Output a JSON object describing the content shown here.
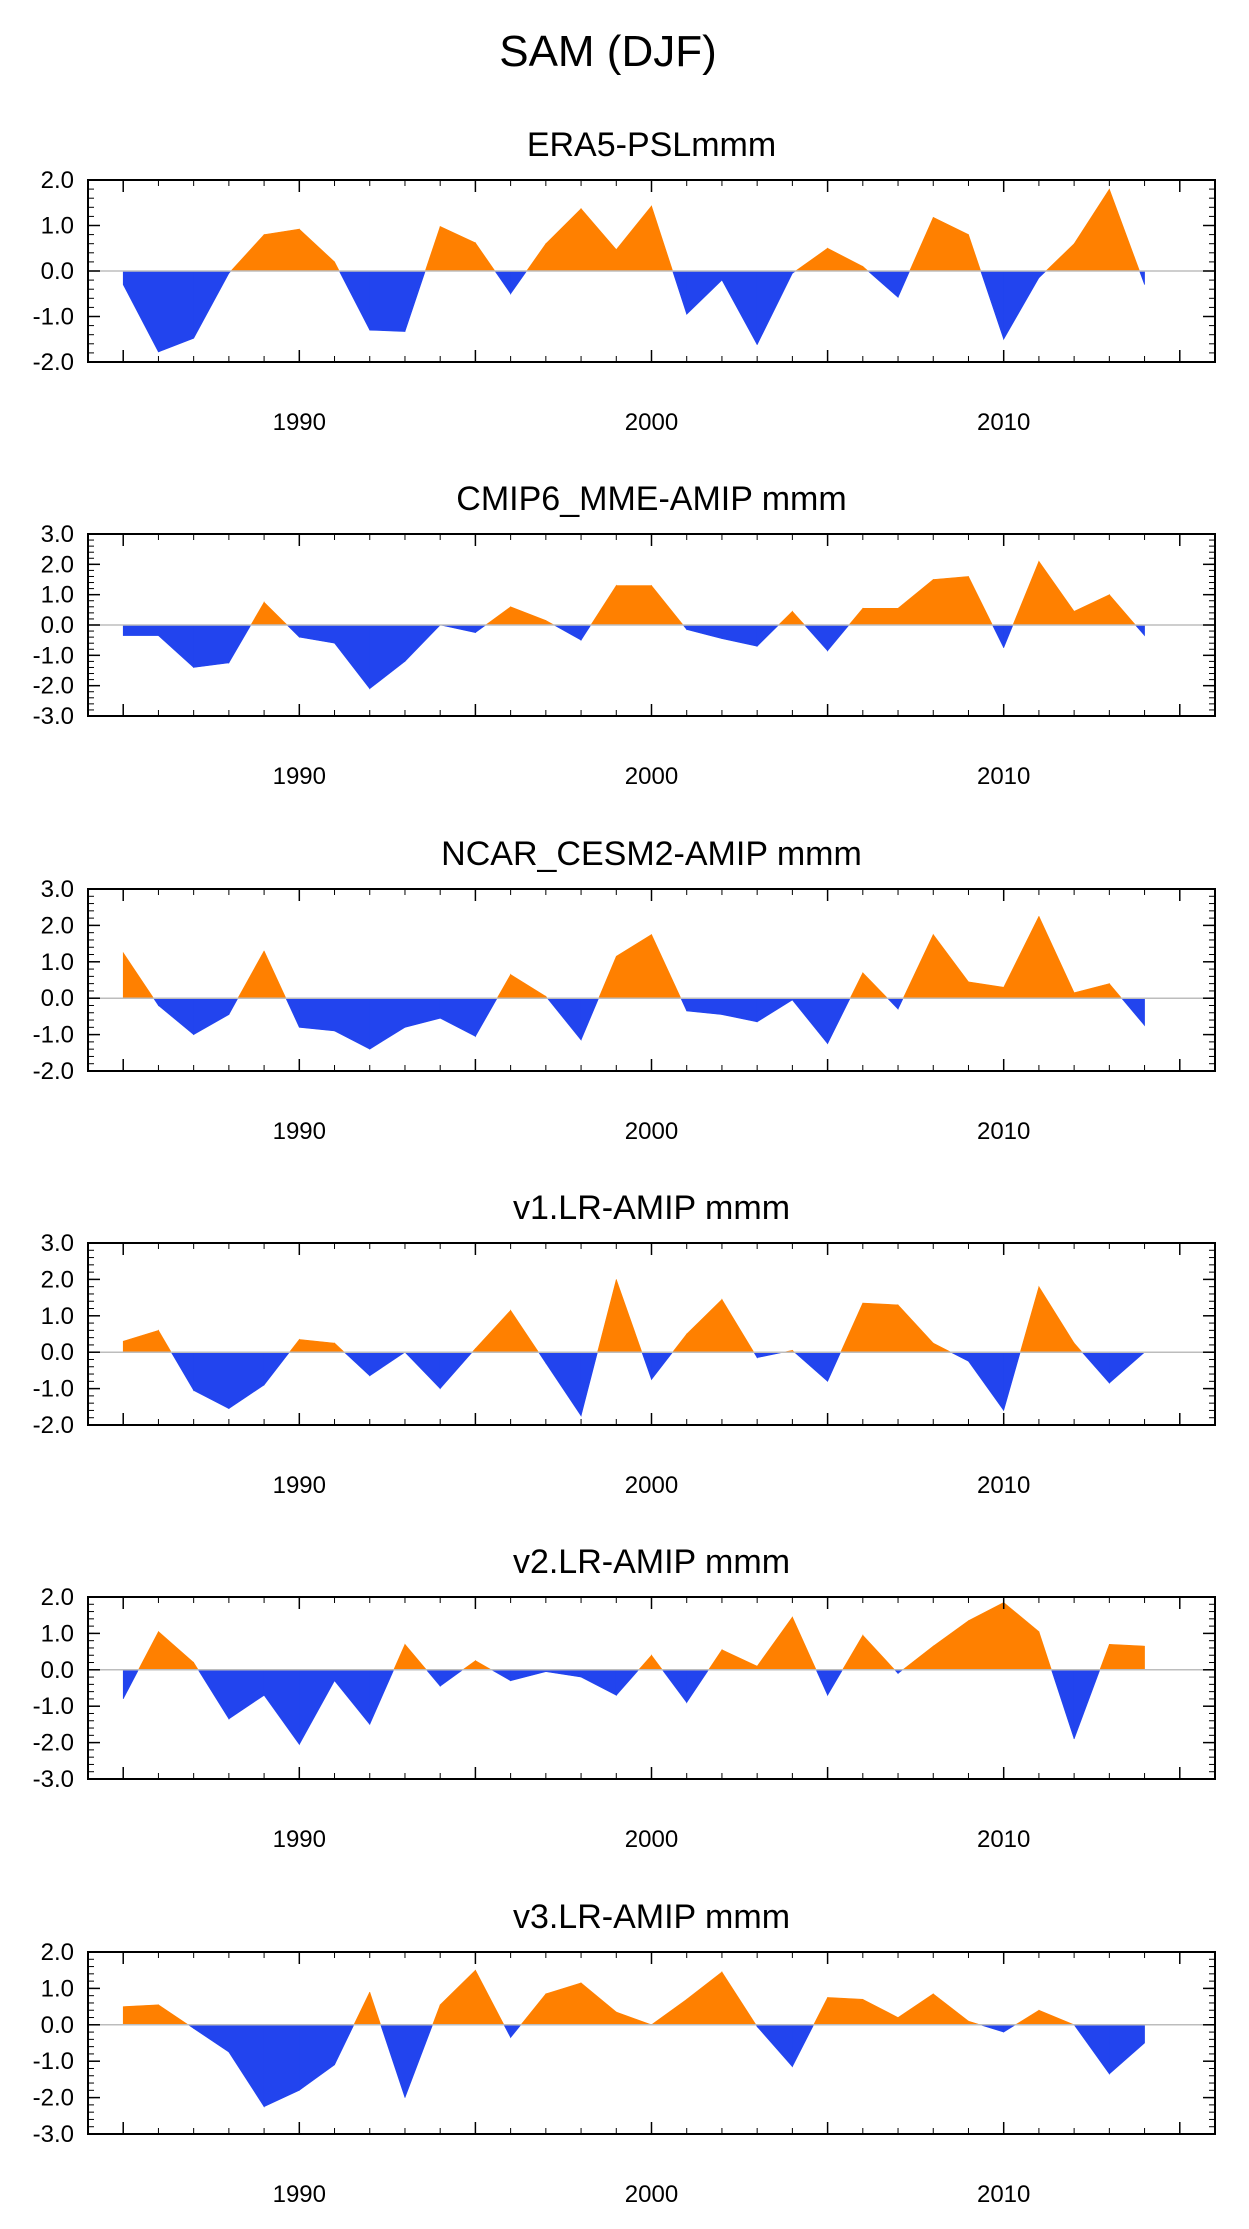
{
  "figure_title": "SAM (DJF)",
  "colors": {
    "positive": "#FF8000",
    "negative": "#2244EE",
    "frame": "#000000",
    "zero_line": "#bdbdbd"
  },
  "chart_data": [
    {
      "type": "area",
      "title": "ERA5-PSLmmm",
      "xlim": [
        1984,
        2016
      ],
      "ylim": [
        -2.0,
        2.0
      ],
      "yticks": [
        2.0,
        1.0,
        0.0,
        -1.0,
        -2.0
      ],
      "ytick_labels": [
        "2.0",
        "1.0",
        "0.0",
        "-1.0",
        "-2.0"
      ],
      "xticks": [
        1990,
        2000,
        2010
      ],
      "xtick_labels": [
        "1990",
        "2000",
        "2010"
      ],
      "x": [
        1985,
        1986,
        1987,
        1988,
        1989,
        1990,
        1991,
        1992,
        1993,
        1994,
        1995,
        1996,
        1997,
        1998,
        1999,
        2000,
        2001,
        2002,
        2003,
        2004,
        2005,
        2006,
        2007,
        2008,
        2009,
        2010,
        2011,
        2012,
        2013,
        2014
      ],
      "values": [
        -0.3,
        -1.78,
        -1.48,
        -0.05,
        0.8,
        0.92,
        0.2,
        -1.3,
        -1.33,
        0.98,
        0.62,
        -0.5,
        0.6,
        1.37,
        0.47,
        1.43,
        -0.95,
        -0.2,
        -1.62,
        -0.05,
        0.5,
        0.1,
        -0.58,
        1.18,
        0.8,
        -1.5,
        -0.15,
        0.6,
        1.8,
        -0.3
      ]
    },
    {
      "type": "area",
      "title": "CMIP6_MME-AMIP  mmm",
      "xlim": [
        1984,
        2016
      ],
      "ylim": [
        -3.0,
        3.0
      ],
      "yticks": [
        3.0,
        2.0,
        1.0,
        0.0,
        -1.0,
        -2.0,
        -3.0
      ],
      "ytick_labels": [
        "3.0",
        "2.0",
        "1.0",
        "0.0",
        "-1.0",
        "-2.0",
        "-3.0"
      ],
      "xticks": [
        1990,
        2000,
        2010
      ],
      "xtick_labels": [
        "1990",
        "2000",
        "2010"
      ],
      "x": [
        1985,
        1986,
        1987,
        1988,
        1989,
        1990,
        1991,
        1992,
        1993,
        1994,
        1995,
        1996,
        1997,
        1998,
        1999,
        2000,
        2001,
        2002,
        2003,
        2004,
        2005,
        2006,
        2007,
        2008,
        2009,
        2010,
        2011,
        2012,
        2013,
        2014
      ],
      "values": [
        -0.35,
        -0.35,
        -1.4,
        -1.25,
        0.75,
        -0.4,
        -0.6,
        -2.1,
        -1.2,
        0.0,
        -0.25,
        0.6,
        0.15,
        -0.5,
        1.3,
        1.3,
        -0.15,
        -0.45,
        -0.7,
        0.45,
        -0.85,
        0.55,
        0.55,
        1.5,
        1.6,
        -0.75,
        2.1,
        0.45,
        1.0,
        -0.35
      ]
    },
    {
      "type": "area",
      "title": "NCAR_CESM2-AMIP  mmm",
      "xlim": [
        1984,
        2016
      ],
      "ylim": [
        -2.0,
        3.0
      ],
      "yticks": [
        3.0,
        2.0,
        1.0,
        0.0,
        -1.0,
        -2.0
      ],
      "ytick_labels": [
        "3.0",
        "2.0",
        "1.0",
        "0.0",
        "-1.0",
        "-2.0"
      ],
      "xticks": [
        1990,
        2000,
        2010
      ],
      "xtick_labels": [
        "1990",
        "2000",
        "2010"
      ],
      "x": [
        1985,
        1986,
        1987,
        1988,
        1989,
        1990,
        1991,
        1992,
        1993,
        1994,
        1995,
        1996,
        1997,
        1998,
        1999,
        2000,
        2001,
        2002,
        2003,
        2004,
        2005,
        2006,
        2007,
        2008,
        2009,
        2010,
        2011,
        2012,
        2013,
        2014
      ],
      "values": [
        1.25,
        -0.2,
        -1.0,
        -0.45,
        1.3,
        -0.8,
        -0.9,
        -1.4,
        -0.8,
        -0.55,
        -1.05,
        0.65,
        0.05,
        -1.15,
        1.15,
        1.75,
        -0.35,
        -0.45,
        -0.65,
        -0.05,
        -1.25,
        0.7,
        -0.3,
        1.75,
        0.45,
        0.3,
        2.25,
        0.15,
        0.4,
        -0.75
      ]
    },
    {
      "type": "area",
      "title": "v1.LR-AMIP  mmm",
      "xlim": [
        1984,
        2016
      ],
      "ylim": [
        -2.0,
        3.0
      ],
      "yticks": [
        3.0,
        2.0,
        1.0,
        0.0,
        -1.0,
        -2.0
      ],
      "ytick_labels": [
        "3.0",
        "2.0",
        "1.0",
        "0.0",
        "-1.0",
        "-2.0"
      ],
      "xticks": [
        1990,
        2000,
        2010
      ],
      "xtick_labels": [
        "1990",
        "2000",
        "2010"
      ],
      "x": [
        1985,
        1986,
        1987,
        1988,
        1989,
        1990,
        1991,
        1992,
        1993,
        1994,
        1995,
        1996,
        1997,
        1998,
        1999,
        2000,
        2001,
        2002,
        2003,
        2004,
        2005,
        2006,
        2007,
        2008,
        2009,
        2010,
        2011,
        2012,
        2013,
        2014
      ],
      "values": [
        0.3,
        0.6,
        -1.05,
        -1.55,
        -0.9,
        0.35,
        0.25,
        -0.65,
        0.0,
        -1.0,
        0.1,
        1.15,
        -0.3,
        -1.75,
        2.0,
        -0.75,
        0.5,
        1.45,
        -0.15,
        0.05,
        -0.8,
        1.35,
        1.3,
        0.25,
        -0.25,
        -1.6,
        1.8,
        0.25,
        -0.85,
        0.0
      ]
    },
    {
      "type": "area",
      "title": "v2.LR-AMIP  mmm",
      "xlim": [
        1984,
        2016
      ],
      "ylim": [
        -3.0,
        2.0
      ],
      "yticks": [
        2.0,
        1.0,
        0.0,
        -1.0,
        -2.0,
        -3.0
      ],
      "ytick_labels": [
        "2.0",
        "1.0",
        "0.0",
        "-1.0",
        "-2.0",
        "-3.0"
      ],
      "xticks": [
        1990,
        2000,
        2010
      ],
      "xtick_labels": [
        "1990",
        "2000",
        "2010"
      ],
      "x": [
        1985,
        1986,
        1987,
        1988,
        1989,
        1990,
        1991,
        1992,
        1993,
        1994,
        1995,
        1996,
        1997,
        1998,
        1999,
        2000,
        2001,
        2002,
        2003,
        2004,
        2005,
        2006,
        2007,
        2008,
        2009,
        2010,
        2011,
        2012,
        2013,
        2014
      ],
      "values": [
        -0.8,
        1.05,
        0.2,
        -1.35,
        -0.7,
        -2.05,
        -0.3,
        -1.5,
        0.7,
        -0.45,
        0.25,
        -0.3,
        -0.05,
        -0.2,
        -0.7,
        0.4,
        -0.9,
        0.55,
        0.1,
        1.45,
        -0.7,
        0.95,
        -0.1,
        0.65,
        1.35,
        1.85,
        1.05,
        -1.9,
        0.7,
        0.65
      ]
    },
    {
      "type": "area",
      "title": "v3.LR-AMIP  mmm",
      "xlim": [
        1984,
        2016
      ],
      "ylim": [
        -3.0,
        2.0
      ],
      "yticks": [
        2.0,
        1.0,
        0.0,
        -1.0,
        -2.0,
        -3.0
      ],
      "ytick_labels": [
        "2.0",
        "1.0",
        "0.0",
        "-1.0",
        "-2.0",
        "-3.0"
      ],
      "xticks": [
        1990,
        2000,
        2010
      ],
      "xtick_labels": [
        "1990",
        "2000",
        "2010"
      ],
      "x": [
        1985,
        1986,
        1987,
        1988,
        1989,
        1990,
        1991,
        1992,
        1993,
        1994,
        1995,
        1996,
        1997,
        1998,
        1999,
        2000,
        2001,
        2002,
        2003,
        2004,
        2005,
        2006,
        2007,
        2008,
        2009,
        2010,
        2011,
        2012,
        2013,
        2014
      ],
      "values": [
        0.5,
        0.55,
        -0.1,
        -0.75,
        -2.25,
        -1.8,
        -1.1,
        0.9,
        -2.0,
        0.55,
        1.5,
        -0.35,
        0.85,
        1.15,
        0.35,
        0.0,
        0.7,
        1.45,
        -0.05,
        -1.15,
        0.75,
        0.7,
        0.2,
        0.85,
        0.1,
        -0.2,
        0.4,
        0.0,
        -1.35,
        -0.5
      ]
    }
  ]
}
